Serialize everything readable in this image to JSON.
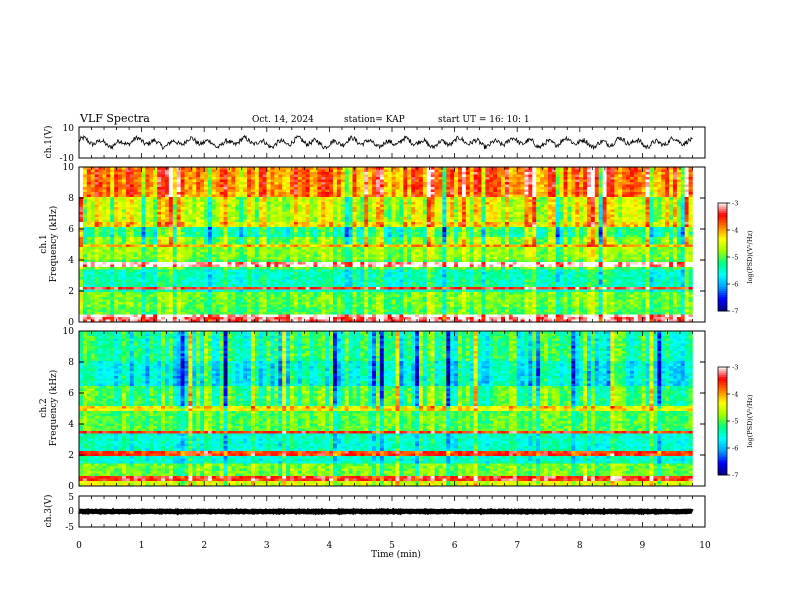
{
  "header": {
    "title": "VLF Spectra",
    "date": "Oct. 14, 2024",
    "station": "station= KAP",
    "start": "start UT =  16: 10: 1"
  },
  "chart_data": [
    {
      "type": "line",
      "panel": "ch1-waveform",
      "ylabel": "ch.1(V)",
      "ylim": [
        -10,
        10
      ],
      "y_ticks": [
        "10",
        "-10"
      ],
      "xlim": [
        0,
        10
      ],
      "color": "#000000",
      "baseline": 0,
      "amplitude": 3.5
    },
    {
      "type": "heatmap",
      "panel": "ch1-spectrogram",
      "ylabel": "ch.1\nFrequency (kHz)",
      "ylim": [
        0,
        10
      ],
      "y_ticks": [
        "0",
        "2",
        "4",
        "6",
        "8",
        "10"
      ],
      "xlim": [
        0,
        9.8
      ],
      "colorbar": {
        "label": "log(PSD)(V²/Hz)",
        "range": [
          -7,
          -3
        ],
        "ticks": [
          "-3",
          "-4",
          "-5",
          "-6",
          "-7"
        ],
        "colors": [
          "#000080",
          "#0000ff",
          "#00a0ff",
          "#00ffff",
          "#00ff80",
          "#a0ff00",
          "#ffff00",
          "#ff8000",
          "#ff0000",
          "#ffffff"
        ]
      },
      "frequency_profile_kHz": [
        {
          "from": 0,
          "to": 0.3,
          "level": -3.2
        },
        {
          "from": 0.3,
          "to": 1.0,
          "level": -5.0
        },
        {
          "from": 1.0,
          "to": 2.0,
          "level": -4.9
        },
        {
          "from": 2.0,
          "to": 3.4,
          "level": -5.4
        },
        {
          "from": 3.4,
          "to": 4.0,
          "level": -5.0
        },
        {
          "from": 4.0,
          "to": 5.5,
          "level": -4.8
        },
        {
          "from": 5.5,
          "to": 6.5,
          "level": -5.2
        },
        {
          "from": 6.5,
          "to": 8.0,
          "level": -4.5
        },
        {
          "from": 8.0,
          "to": 10.0,
          "level": -3.8
        }
      ],
      "lines_kHz": [
        {
          "f": 0.4,
          "level": -3.0
        },
        {
          "f": 2.2,
          "level": -3.4
        },
        {
          "f": 3.7,
          "level": -3.0
        },
        {
          "f": 4.9,
          "level": -4.0
        },
        {
          "f": 6.3,
          "level": -4.2
        }
      ]
    },
    {
      "type": "heatmap",
      "panel": "ch2-spectrogram",
      "ylabel": "ch.2\nFrequency (kHz)",
      "ylim": [
        0,
        10
      ],
      "y_ticks": [
        "0",
        "2",
        "4",
        "6",
        "8",
        "10"
      ],
      "xlim": [
        0,
        9.8
      ],
      "colorbar": {
        "label": "log(PSD)(V²/Hz)",
        "range": [
          -7,
          -3
        ],
        "ticks": [
          "-3",
          "-4",
          "-5",
          "-6",
          "-7"
        ],
        "colors": [
          "#000080",
          "#0000ff",
          "#00a0ff",
          "#00ffff",
          "#00ff80",
          "#a0ff00",
          "#ffff00",
          "#ff8000",
          "#ff0000",
          "#ffffff"
        ]
      },
      "frequency_profile_kHz": [
        {
          "from": 0,
          "to": 0.4,
          "level": -4.5
        },
        {
          "from": 0.4,
          "to": 1.5,
          "level": -4.9
        },
        {
          "from": 1.5,
          "to": 3.5,
          "level": -5.5
        },
        {
          "from": 3.5,
          "to": 5.0,
          "level": -5.0
        },
        {
          "from": 5.0,
          "to": 6.5,
          "level": -5.1
        },
        {
          "from": 6.5,
          "to": 8.0,
          "level": -5.6
        },
        {
          "from": 8.0,
          "to": 10.0,
          "level": -5.3
        }
      ],
      "lines_kHz": [
        {
          "f": 0.5,
          "level": -3.4
        },
        {
          "f": 2.1,
          "level": -3.6
        },
        {
          "f": 3.5,
          "level": -3.5
        },
        {
          "f": 5.0,
          "level": -4.3
        }
      ]
    },
    {
      "type": "line",
      "panel": "ch3-waveform",
      "ylabel": "ch.3(V)",
      "ylim": [
        -5,
        5
      ],
      "y_ticks": [
        "5",
        "0",
        "-5"
      ],
      "xlim": [
        0,
        10
      ],
      "color": "#000000",
      "baseline": 0,
      "amplitude": 0.25
    }
  ],
  "x_axis": {
    "label": "Time (min)",
    "ticks": [
      "0",
      "1",
      "2",
      "3",
      "4",
      "5",
      "6",
      "7",
      "8",
      "9",
      "10"
    ]
  }
}
